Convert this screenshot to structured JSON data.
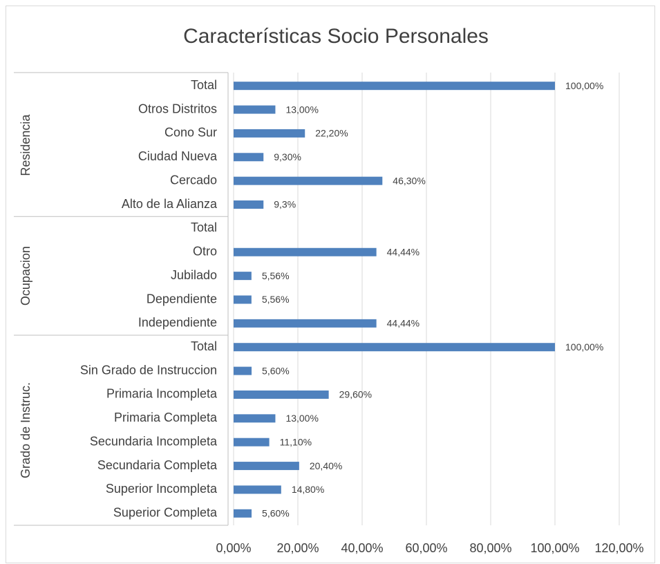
{
  "chart_data": {
    "type": "bar",
    "orientation": "horizontal",
    "title": "Características Socio Personales",
    "color": "#4f81bd",
    "grid": true,
    "xlim": [
      0,
      120
    ],
    "xticks": [
      {
        "value": 0,
        "label": "0,00%"
      },
      {
        "value": 20,
        "label": "20,00%"
      },
      {
        "value": 40,
        "label": "40,00%"
      },
      {
        "value": 60,
        "label": "60,00%"
      },
      {
        "value": 80,
        "label": "80,00%"
      },
      {
        "value": 100,
        "label": "100,00%"
      },
      {
        "value": 120,
        "label": "120,00%"
      }
    ],
    "groups": [
      {
        "name": "Residencia",
        "categories": [
          "Total",
          "Otros Distritos",
          "Cono Sur",
          "Ciudad Nueva",
          "Cercado",
          "Alto de la Alianza"
        ],
        "values": [
          100,
          13,
          22.2,
          9.3,
          46.3,
          9.3
        ],
        "value_labels": [
          "100,00%",
          "13,00%",
          "22,20%",
          "9,30%",
          "46,30%",
          "9,3%"
        ]
      },
      {
        "name": "Ocupacion",
        "categories": [
          "Total",
          "Otro",
          "Jubilado",
          "Dependiente",
          "Independiente"
        ],
        "values": [
          null,
          44.44,
          5.56,
          5.56,
          44.44
        ],
        "value_labels": [
          null,
          "44,44%",
          "5,56%",
          "5,56%",
          "44,44%"
        ]
      },
      {
        "name": "Grado de Instruc.",
        "categories": [
          "Total",
          "Sin Grado de Instruccion",
          "Primaria Incompleta",
          "Primaria Completa",
          "Secundaria Incompleta",
          "Secundaria Completa",
          "Superior Incompleta",
          "Superior Completa"
        ],
        "values": [
          100,
          5.6,
          29.6,
          13,
          11.1,
          20.4,
          14.8,
          5.6
        ],
        "value_labels": [
          "100,00%",
          "5,60%",
          "29,60%",
          "13,00%",
          "11,10%",
          "20,40%",
          "14,80%",
          "5,60%"
        ]
      }
    ]
  }
}
